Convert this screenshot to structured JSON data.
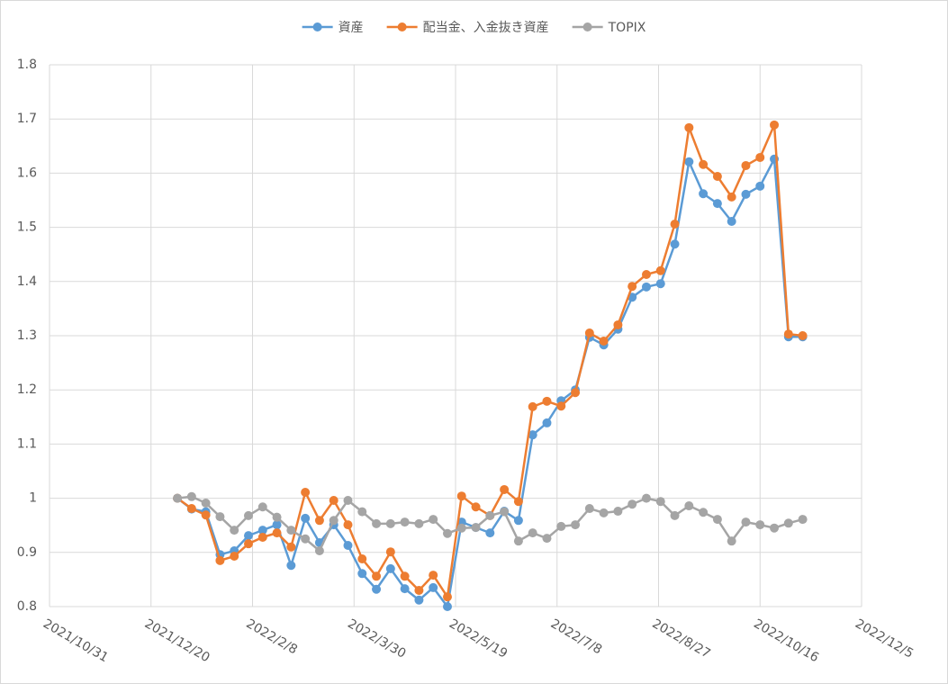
{
  "chart_data": {
    "type": "line",
    "x": [
      "2022/1/2",
      "2022/1/9",
      "2022/1/16",
      "2022/1/23",
      "2022/1/30",
      "2022/2/6",
      "2022/2/13",
      "2022/2/20",
      "2022/2/27",
      "2022/3/6",
      "2022/3/13",
      "2022/3/20",
      "2022/3/27",
      "2022/4/3",
      "2022/4/10",
      "2022/4/17",
      "2022/4/24",
      "2022/5/1",
      "2022/5/8",
      "2022/5/15",
      "2022/5/22",
      "2022/5/29",
      "2022/6/5",
      "2022/6/12",
      "2022/6/19",
      "2022/6/26",
      "2022/7/3",
      "2022/7/10",
      "2022/7/17",
      "2022/7/24",
      "2022/7/31",
      "2022/8/7",
      "2022/8/14",
      "2022/8/21",
      "2022/8/28",
      "2022/9/4",
      "2022/9/11",
      "2022/9/18",
      "2022/9/25",
      "2022/10/2",
      "2022/10/9",
      "2022/10/16",
      "2022/10/23",
      "2022/10/30",
      "2022/11/6"
    ],
    "series": [
      {
        "name": "資産",
        "color": "#5b9bd5",
        "values": [
          1.0,
          0.98,
          0.975,
          0.896,
          0.903,
          0.931,
          0.941,
          0.951,
          0.876,
          0.963,
          0.918,
          0.951,
          0.913,
          0.861,
          0.832,
          0.87,
          0.833,
          0.812,
          0.835,
          0.8,
          0.956,
          0.946,
          0.936,
          0.976,
          0.959,
          1.117,
          1.139,
          1.18,
          1.2,
          1.297,
          1.283,
          1.312,
          1.371,
          1.39,
          1.396,
          1.469,
          1.621,
          1.562,
          1.544,
          1.511,
          1.561,
          1.576,
          1.626,
          1.298,
          1.298
        ]
      },
      {
        "name": "配当金、入金抜き資産",
        "color": "#ed7d31",
        "values": [
          1.0,
          0.981,
          0.969,
          0.885,
          0.893,
          0.916,
          0.928,
          0.936,
          0.91,
          1.011,
          0.959,
          0.996,
          0.951,
          0.888,
          0.856,
          0.901,
          0.856,
          0.83,
          0.858,
          0.818,
          1.004,
          0.984,
          0.968,
          1.016,
          0.994,
          1.169,
          1.179,
          1.17,
          1.195,
          1.305,
          1.29,
          1.32,
          1.391,
          1.413,
          1.42,
          1.506,
          1.684,
          1.616,
          1.594,
          1.556,
          1.614,
          1.629,
          1.689,
          1.303,
          1.3
        ]
      },
      {
        "name": "TOPIX",
        "color": "#a5a5a5",
        "values": [
          1.0,
          1.003,
          0.991,
          0.966,
          0.941,
          0.968,
          0.984,
          0.965,
          0.941,
          0.925,
          0.903,
          0.959,
          0.996,
          0.975,
          0.953,
          0.953,
          0.956,
          0.953,
          0.961,
          0.935,
          0.945,
          0.946,
          0.968,
          0.975,
          0.921,
          0.936,
          0.926,
          0.948,
          0.951,
          0.981,
          0.973,
          0.976,
          0.989,
          1.0,
          0.994,
          0.968,
          0.986,
          0.974,
          0.961,
          0.921,
          0.956,
          0.951,
          0.945,
          0.954,
          0.961
        ]
      }
    ],
    "xlim": [
      "2021/10/31",
      "2022/12/5"
    ],
    "xticks": [
      "2021/10/31",
      "2021/12/20",
      "2022/2/8",
      "2022/3/30",
      "2022/5/19",
      "2022/7/8",
      "2022/8/27",
      "2022/10/16",
      "2022/12/5"
    ],
    "ylim": [
      0.8,
      1.8
    ],
    "yticks": [
      0.8,
      0.9,
      1,
      1.1,
      1.2,
      1.3,
      1.4,
      1.5,
      1.6,
      1.7,
      1.8
    ],
    "grid": true,
    "legend": "top"
  }
}
